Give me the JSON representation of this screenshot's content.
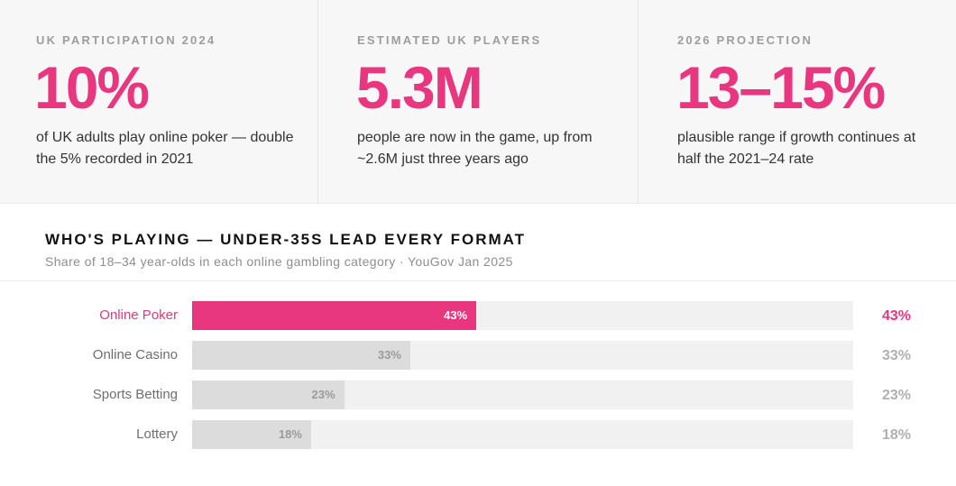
{
  "stats": [
    {
      "label": "UK PARTICIPATION 2024",
      "value": "10%",
      "description": "of UK adults play online poker — double the 5% recorded in 2021"
    },
    {
      "label": "ESTIMATED UK PLAYERS",
      "value": "5.3M",
      "description": "people are now in the game, up from ~2.6M just three years ago"
    },
    {
      "label": "2026 PROJECTION",
      "value": "13–15%",
      "description": "plausible range if growth continues at half the 2021–24 rate"
    }
  ],
  "section": {
    "title": "WHO'S PLAYING — UNDER-35S LEAD EVERY FORMAT",
    "subtitle": "Share of 18–34 year-olds in each online gambling category · YouGov Jan 2025"
  },
  "colors": {
    "accent": "#e8367f",
    "bar": "#dcdcdc",
    "track": "#f1f1f1"
  },
  "chart_data": {
    "type": "bar",
    "orientation": "horizontal",
    "title": "WHO'S PLAYING — UNDER-35S LEAD EVERY FORMAT",
    "subtitle": "Share of 18–34 year-olds in each online gambling category · YouGov Jan 2025",
    "categories": [
      "Online Poker",
      "Online Casino",
      "Sports Betting",
      "Lottery"
    ],
    "values": [
      43,
      33,
      23,
      18
    ],
    "value_labels": [
      "43%",
      "33%",
      "23%",
      "18%"
    ],
    "highlighted": "Online Poker",
    "xlim": [
      0,
      100
    ],
    "unit": "%",
    "xlabel": "",
    "ylabel": "",
    "grid": false
  }
}
